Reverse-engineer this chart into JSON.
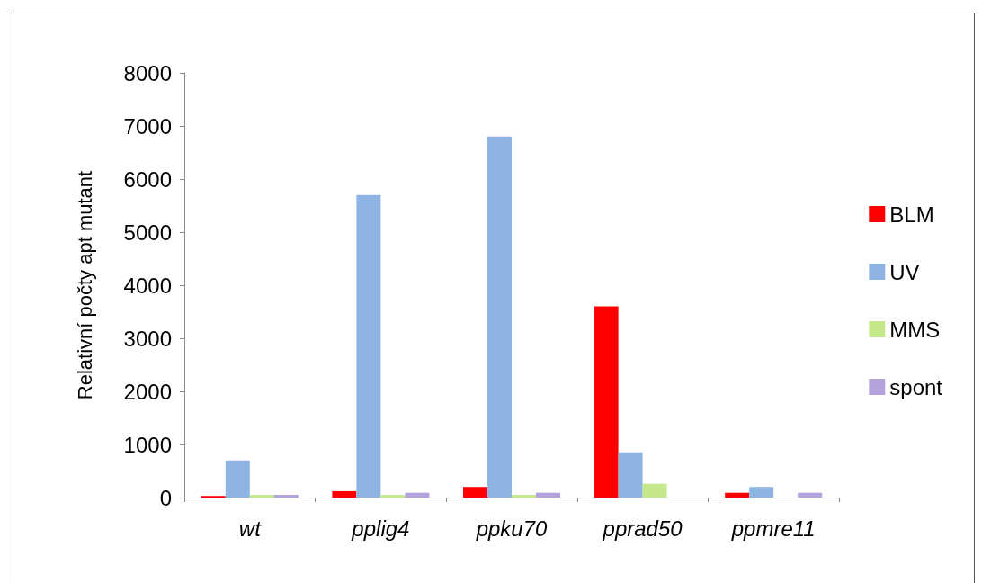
{
  "chart_data": {
    "type": "bar",
    "ylabel": "Relativní počty apt mutant",
    "categories": [
      "wt",
      "pplig4",
      "ppku70",
      "pprad50",
      "ppmre11"
    ],
    "series": [
      {
        "name": "BLM",
        "color": "#ff0000",
        "values": [
          30,
          120,
          200,
          3600,
          90
        ]
      },
      {
        "name": "UV",
        "color": "#8eb4e3",
        "values": [
          700,
          5700,
          6800,
          850,
          200
        ]
      },
      {
        "name": "MMS",
        "color": "#c4e88a",
        "values": [
          50,
          50,
          50,
          260,
          0
        ]
      },
      {
        "name": "spont",
        "color": "#b3a2db",
        "values": [
          50,
          90,
          90,
          0,
          90
        ]
      }
    ],
    "ylim": [
      0,
      8000
    ],
    "yticks": [
      0,
      1000,
      2000,
      3000,
      4000,
      5000,
      6000,
      7000,
      8000
    ],
    "grid": false,
    "legend": "right"
  }
}
